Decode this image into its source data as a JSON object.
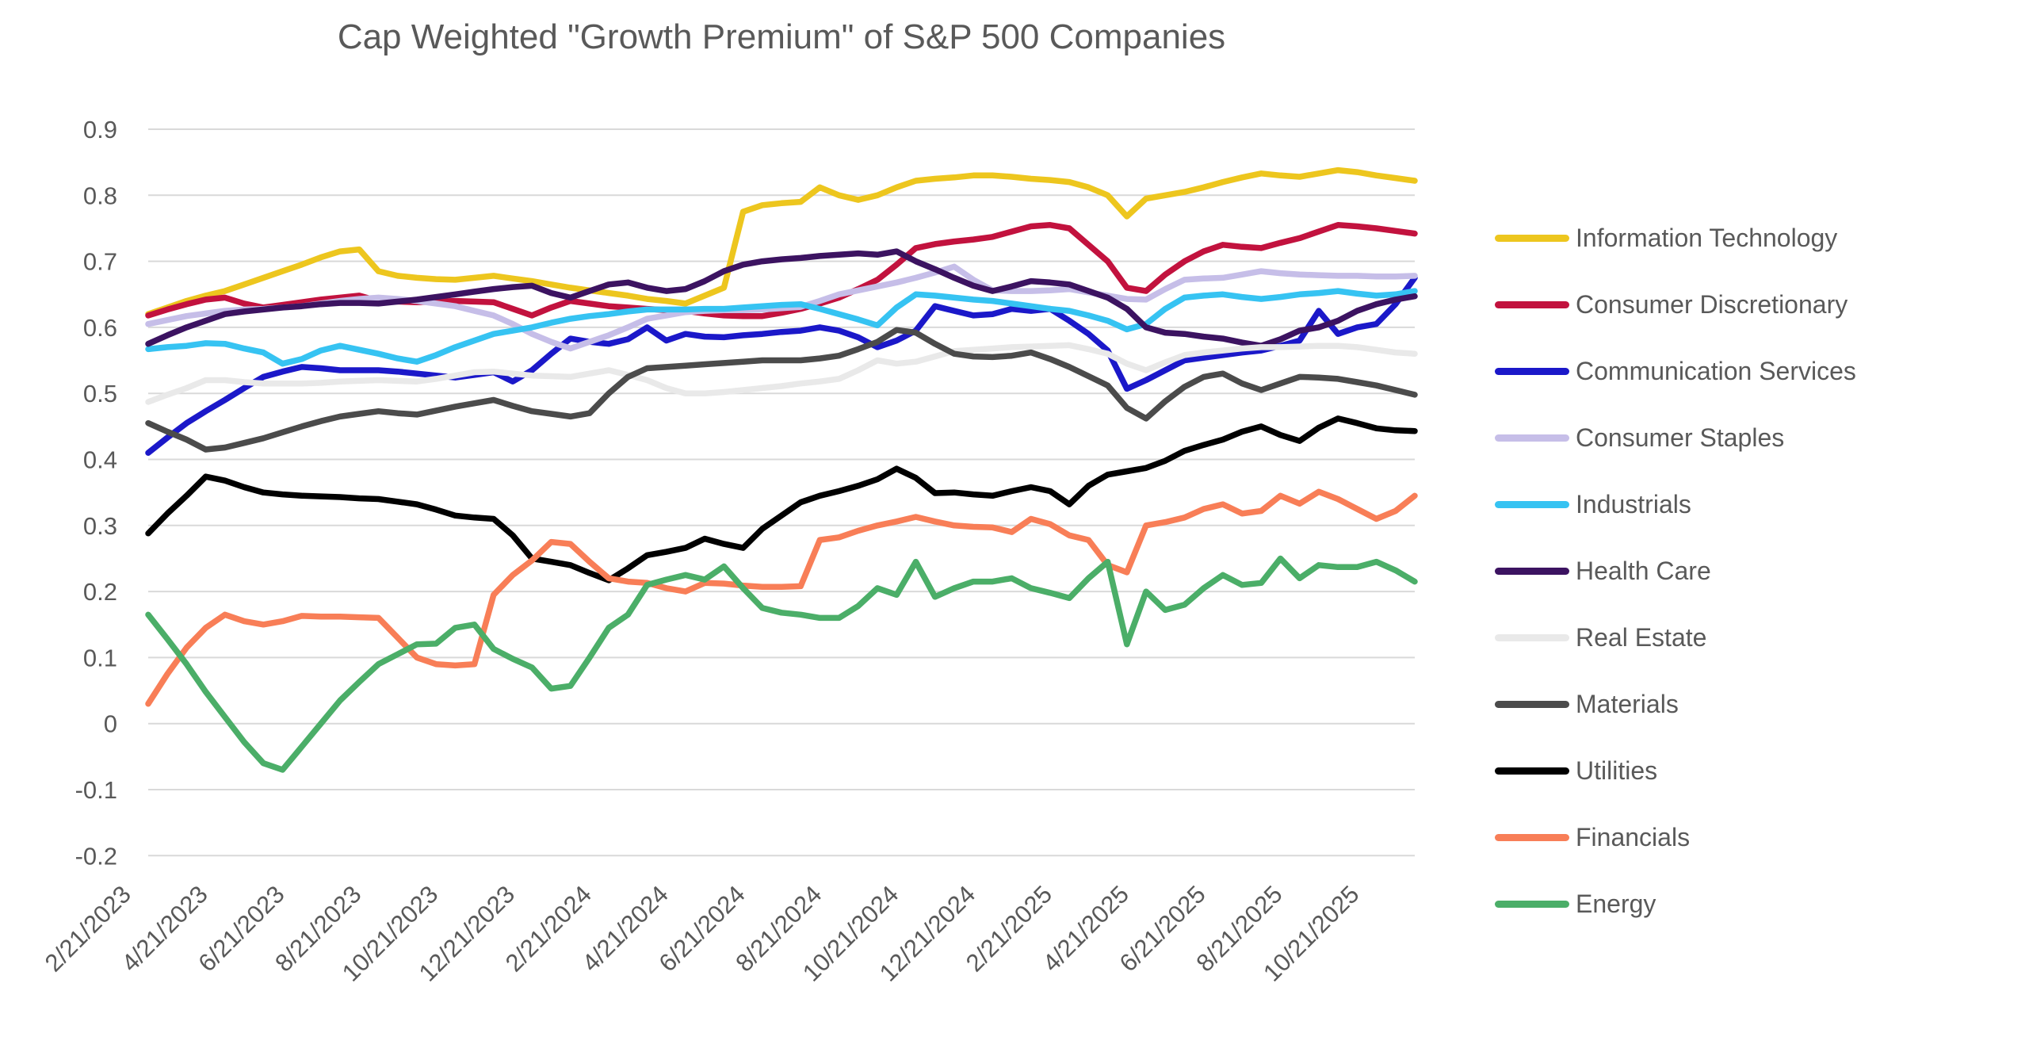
{
  "chart_data": {
    "type": "line",
    "title": "Cap Weighted \"Growth Premium\" of S&P 500 Companies",
    "xlabel": "",
    "ylabel": "",
    "ylim": [
      -0.2,
      0.9
    ],
    "grid": "horizontal",
    "legend_position": "right",
    "y_tick_labels": [
      "0.9",
      "0.8",
      "0.7",
      "0.6",
      "0.5",
      "0.4",
      "0.3",
      "0.2",
      "0.1",
      "0",
      "-0.1",
      "-0.2"
    ],
    "y_tick_values": [
      0.9,
      0.8,
      0.7,
      0.6,
      0.5,
      0.4,
      0.3,
      0.2,
      0.1,
      0,
      -0.1,
      -0.2
    ],
    "x_tick_labels": [
      "2/21/2023",
      "4/21/2023",
      "6/21/2023",
      "8/21/2023",
      "10/21/2023",
      "12/21/2023",
      "2/21/2024",
      "4/21/2024",
      "6/21/2024",
      "8/21/2024",
      "10/21/2024",
      "12/21/2024",
      "2/21/2025",
      "4/21/2025",
      "6/21/2025",
      "8/21/2025",
      "10/21/2025"
    ],
    "x_start": "2/21/2023",
    "x_end": "11/21/2025",
    "points_per_series": 67,
    "x_sampling": "approx. semi-monthly, ticks fall on every 4th point",
    "series": [
      {
        "name": "Information Technology",
        "color": "#EDC61E",
        "values": [
          0.62,
          0.63,
          0.64,
          0.648,
          0.655,
          0.665,
          0.675,
          0.685,
          0.695,
          0.706,
          0.715,
          0.718,
          0.685,
          0.678,
          0.675,
          0.673,
          0.672,
          0.675,
          0.678,
          0.674,
          0.67,
          0.665,
          0.66,
          0.656,
          0.652,
          0.648,
          0.643,
          0.64,
          0.636,
          0.648,
          0.66,
          0.775,
          0.785,
          0.788,
          0.79,
          0.812,
          0.8,
          0.793,
          0.8,
          0.812,
          0.822,
          0.825,
          0.827,
          0.83,
          0.83,
          0.828,
          0.825,
          0.823,
          0.82,
          0.812,
          0.8,
          0.768,
          0.795,
          0.8,
          0.805,
          0.812,
          0.82,
          0.827,
          0.833,
          0.83,
          0.828,
          0.833,
          0.838,
          0.835,
          0.83,
          0.826,
          0.822
        ]
      },
      {
        "name": "Consumer Discretionary",
        "color": "#C2123E",
        "values": [
          0.618,
          0.627,
          0.635,
          0.642,
          0.645,
          0.636,
          0.63,
          0.634,
          0.638,
          0.642,
          0.645,
          0.648,
          0.64,
          0.639,
          0.638,
          0.639,
          0.64,
          0.639,
          0.638,
          0.628,
          0.618,
          0.63,
          0.64,
          0.636,
          0.632,
          0.63,
          0.628,
          0.626,
          0.625,
          0.621,
          0.618,
          0.617,
          0.617,
          0.622,
          0.628,
          0.636,
          0.645,
          0.658,
          0.672,
          0.695,
          0.72,
          0.726,
          0.73,
          0.733,
          0.737,
          0.745,
          0.753,
          0.755,
          0.75,
          0.725,
          0.7,
          0.66,
          0.655,
          0.68,
          0.7,
          0.715,
          0.725,
          0.722,
          0.72,
          0.728,
          0.735,
          0.745,
          0.755,
          0.753,
          0.75,
          0.746,
          0.742
        ]
      },
      {
        "name": "Communication Services",
        "color": "#1B18C9",
        "values": [
          0.41,
          0.433,
          0.455,
          0.473,
          0.49,
          0.508,
          0.525,
          0.533,
          0.54,
          0.538,
          0.535,
          0.535,
          0.535,
          0.533,
          0.53,
          0.527,
          0.524,
          0.528,
          0.532,
          0.518,
          0.535,
          0.56,
          0.583,
          0.578,
          0.575,
          0.582,
          0.6,
          0.58,
          0.59,
          0.586,
          0.585,
          0.588,
          0.59,
          0.593,
          0.595,
          0.6,
          0.595,
          0.585,
          0.57,
          0.58,
          0.595,
          0.632,
          0.625,
          0.618,
          0.62,
          0.628,
          0.625,
          0.628,
          0.61,
          0.59,
          0.565,
          0.507,
          0.52,
          0.535,
          0.55,
          0.554,
          0.558,
          0.562,
          0.565,
          0.572,
          0.58,
          0.625,
          0.59,
          0.6,
          0.605,
          0.635,
          0.675
        ]
      },
      {
        "name": "Consumer Staples",
        "color": "#C6BEE8",
        "values": [
          0.605,
          0.611,
          0.617,
          0.621,
          0.625,
          0.627,
          0.628,
          0.63,
          0.632,
          0.636,
          0.64,
          0.643,
          0.645,
          0.643,
          0.64,
          0.636,
          0.632,
          0.625,
          0.618,
          0.605,
          0.59,
          0.578,
          0.568,
          0.578,
          0.588,
          0.6,
          0.613,
          0.618,
          0.623,
          0.625,
          0.626,
          0.626,
          0.627,
          0.629,
          0.631,
          0.64,
          0.65,
          0.656,
          0.662,
          0.668,
          0.675,
          0.683,
          0.692,
          0.672,
          0.656,
          0.655,
          0.655,
          0.656,
          0.658,
          0.653,
          0.648,
          0.643,
          0.642,
          0.658,
          0.672,
          0.674,
          0.675,
          0.68,
          0.685,
          0.682,
          0.68,
          0.679,
          0.678,
          0.678,
          0.677,
          0.677,
          0.678
        ]
      },
      {
        "name": "Industrials",
        "color": "#36C3F2",
        "values": [
          0.567,
          0.57,
          0.572,
          0.576,
          0.575,
          0.568,
          0.562,
          0.545,
          0.552,
          0.565,
          0.572,
          0.566,
          0.56,
          0.553,
          0.548,
          0.558,
          0.57,
          0.58,
          0.59,
          0.595,
          0.6,
          0.607,
          0.613,
          0.617,
          0.62,
          0.624,
          0.627,
          0.627,
          0.627,
          0.628,
          0.628,
          0.63,
          0.632,
          0.634,
          0.635,
          0.628,
          0.62,
          0.612,
          0.603,
          0.63,
          0.65,
          0.648,
          0.645,
          0.642,
          0.64,
          0.636,
          0.632,
          0.628,
          0.625,
          0.618,
          0.61,
          0.597,
          0.605,
          0.628,
          0.645,
          0.648,
          0.65,
          0.646,
          0.643,
          0.646,
          0.65,
          0.652,
          0.655,
          0.651,
          0.648,
          0.65,
          0.655
        ]
      },
      {
        "name": "Health Care",
        "color": "#3C1361",
        "values": [
          0.575,
          0.588,
          0.6,
          0.61,
          0.62,
          0.624,
          0.627,
          0.63,
          0.632,
          0.635,
          0.637,
          0.637,
          0.636,
          0.639,
          0.642,
          0.646,
          0.65,
          0.654,
          0.658,
          0.661,
          0.663,
          0.652,
          0.645,
          0.655,
          0.665,
          0.668,
          0.66,
          0.655,
          0.658,
          0.67,
          0.685,
          0.695,
          0.7,
          0.703,
          0.705,
          0.708,
          0.71,
          0.712,
          0.71,
          0.715,
          0.7,
          0.688,
          0.675,
          0.663,
          0.655,
          0.662,
          0.67,
          0.668,
          0.665,
          0.655,
          0.645,
          0.628,
          0.6,
          0.592,
          0.59,
          0.586,
          0.583,
          0.577,
          0.572,
          0.582,
          0.595,
          0.6,
          0.61,
          0.625,
          0.635,
          0.642,
          0.647
        ]
      },
      {
        "name": "Real Estate",
        "color": "#E9E9E9",
        "values": [
          0.487,
          0.498,
          0.508,
          0.52,
          0.52,
          0.517,
          0.515,
          0.515,
          0.515,
          0.516,
          0.518,
          0.519,
          0.52,
          0.519,
          0.518,
          0.522,
          0.527,
          0.532,
          0.533,
          0.53,
          0.527,
          0.526,
          0.525,
          0.53,
          0.535,
          0.528,
          0.52,
          0.508,
          0.5,
          0.5,
          0.502,
          0.505,
          0.508,
          0.511,
          0.515,
          0.518,
          0.522,
          0.535,
          0.55,
          0.545,
          0.548,
          0.556,
          0.564,
          0.566,
          0.568,
          0.57,
          0.571,
          0.572,
          0.573,
          0.567,
          0.56,
          0.545,
          0.535,
          0.547,
          0.558,
          0.562,
          0.565,
          0.568,
          0.57,
          0.57,
          0.571,
          0.572,
          0.572,
          0.57,
          0.566,
          0.562,
          0.56
        ]
      },
      {
        "name": "Materials",
        "color": "#4B4B4B",
        "values": [
          0.455,
          0.442,
          0.43,
          0.415,
          0.418,
          0.425,
          0.432,
          0.441,
          0.45,
          0.458,
          0.465,
          0.469,
          0.473,
          0.47,
          0.468,
          0.474,
          0.48,
          0.485,
          0.49,
          0.481,
          0.473,
          0.469,
          0.465,
          0.47,
          0.5,
          0.525,
          0.538,
          0.54,
          0.542,
          0.544,
          0.546,
          0.548,
          0.55,
          0.55,
          0.55,
          0.553,
          0.557,
          0.567,
          0.578,
          0.596,
          0.592,
          0.575,
          0.56,
          0.556,
          0.555,
          0.557,
          0.562,
          0.552,
          0.54,
          0.526,
          0.512,
          0.478,
          0.462,
          0.488,
          0.51,
          0.525,
          0.53,
          0.515,
          0.505,
          0.515,
          0.525,
          0.524,
          0.522,
          0.517,
          0.512,
          0.505,
          0.498
        ]
      },
      {
        "name": "Utilities",
        "color": "#000000",
        "values": [
          0.288,
          0.318,
          0.345,
          0.374,
          0.368,
          0.358,
          0.35,
          0.347,
          0.345,
          0.344,
          0.343,
          0.341,
          0.34,
          0.336,
          0.332,
          0.324,
          0.315,
          0.312,
          0.31,
          0.285,
          0.25,
          0.245,
          0.24,
          0.228,
          0.217,
          0.235,
          0.255,
          0.26,
          0.266,
          0.28,
          0.272,
          0.266,
          0.295,
          0.315,
          0.335,
          0.345,
          0.352,
          0.36,
          0.37,
          0.386,
          0.372,
          0.349,
          0.35,
          0.347,
          0.345,
          0.352,
          0.358,
          0.352,
          0.332,
          0.36,
          0.377,
          0.382,
          0.387,
          0.398,
          0.413,
          0.422,
          0.43,
          0.442,
          0.45,
          0.437,
          0.428,
          0.448,
          0.462,
          0.455,
          0.447,
          0.444,
          0.443
        ]
      },
      {
        "name": "Financials",
        "color": "#F87E57",
        "values": [
          0.03,
          0.075,
          0.115,
          0.145,
          0.165,
          0.155,
          0.15,
          0.155,
          0.163,
          0.162,
          0.162,
          0.161,
          0.16,
          0.13,
          0.1,
          0.09,
          0.088,
          0.09,
          0.195,
          0.225,
          0.247,
          0.275,
          0.272,
          0.245,
          0.22,
          0.215,
          0.213,
          0.205,
          0.2,
          0.213,
          0.212,
          0.209,
          0.207,
          0.207,
          0.208,
          0.278,
          0.282,
          0.292,
          0.3,
          0.306,
          0.313,
          0.306,
          0.3,
          0.298,
          0.297,
          0.29,
          0.31,
          0.302,
          0.285,
          0.278,
          0.24,
          0.229,
          0.3,
          0.305,
          0.312,
          0.325,
          0.332,
          0.318,
          0.322,
          0.345,
          0.333,
          0.351,
          0.34,
          0.325,
          0.31,
          0.322,
          0.345
        ]
      },
      {
        "name": "Energy",
        "color": "#4BAE68",
        "values": [
          0.165,
          0.128,
          0.09,
          0.048,
          0.01,
          -0.028,
          -0.06,
          -0.07,
          -0.035,
          0.0,
          0.035,
          0.063,
          0.09,
          0.105,
          0.12,
          0.121,
          0.145,
          0.15,
          0.113,
          0.098,
          0.085,
          0.053,
          0.057,
          0.1,
          0.145,
          0.165,
          0.21,
          0.218,
          0.225,
          0.218,
          0.238,
          0.205,
          0.175,
          0.168,
          0.165,
          0.16,
          0.16,
          0.178,
          0.205,
          0.195,
          0.245,
          0.192,
          0.205,
          0.215,
          0.215,
          0.22,
          0.205,
          0.198,
          0.19,
          0.22,
          0.245,
          0.12,
          0.2,
          0.172,
          0.18,
          0.205,
          0.225,
          0.21,
          0.213,
          0.25,
          0.22,
          0.24,
          0.237,
          0.237,
          0.245,
          0.232,
          0.215
        ]
      }
    ]
  }
}
